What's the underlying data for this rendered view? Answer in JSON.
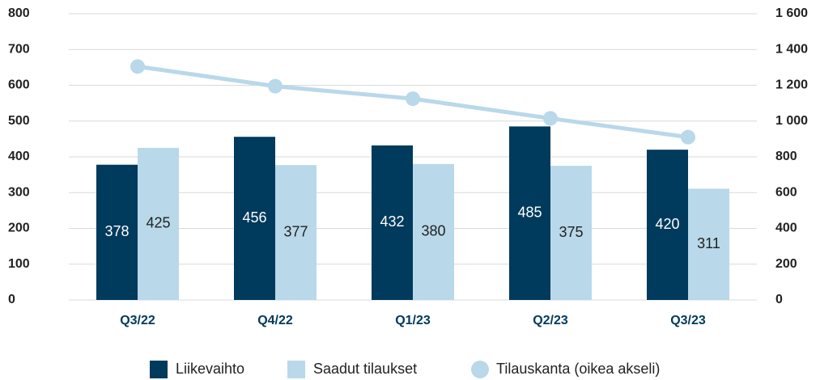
{
  "chart_data": {
    "type": "bar",
    "categories": [
      "Q3/22",
      "Q4/22",
      "Q1/23",
      "Q2/23",
      "Q3/23"
    ],
    "series": [
      {
        "name": "Liikevaihto",
        "color": "#003a5c",
        "values": [
          378,
          456,
          432,
          485,
          420
        ]
      },
      {
        "name": "Saadut tilaukset",
        "color": "#b9d8ea",
        "values": [
          425,
          377,
          380,
          375,
          311
        ]
      },
      {
        "name": "Tilauskanta (oikea akseli)",
        "color": "#b9d8ea",
        "type": "line",
        "axis": "y2",
        "values": [
          1305,
          1195,
          1125,
          1015,
          910
        ]
      }
    ],
    "ylim": [
      0,
      800
    ],
    "yticks": [
      0,
      100,
      200,
      300,
      400,
      500,
      600,
      700,
      800
    ],
    "y2lim": [
      0,
      1600
    ],
    "y2ticks": [
      0,
      200,
      400,
      600,
      800,
      {
        "value": 1000,
        "label": "1 000"
      },
      {
        "value": 1200,
        "label": "1 200"
      },
      {
        "value": 1400,
        "label": "1 400"
      },
      {
        "value": 1600,
        "label": "1 600"
      }
    ],
    "grid": true,
    "legend": "bottom"
  }
}
